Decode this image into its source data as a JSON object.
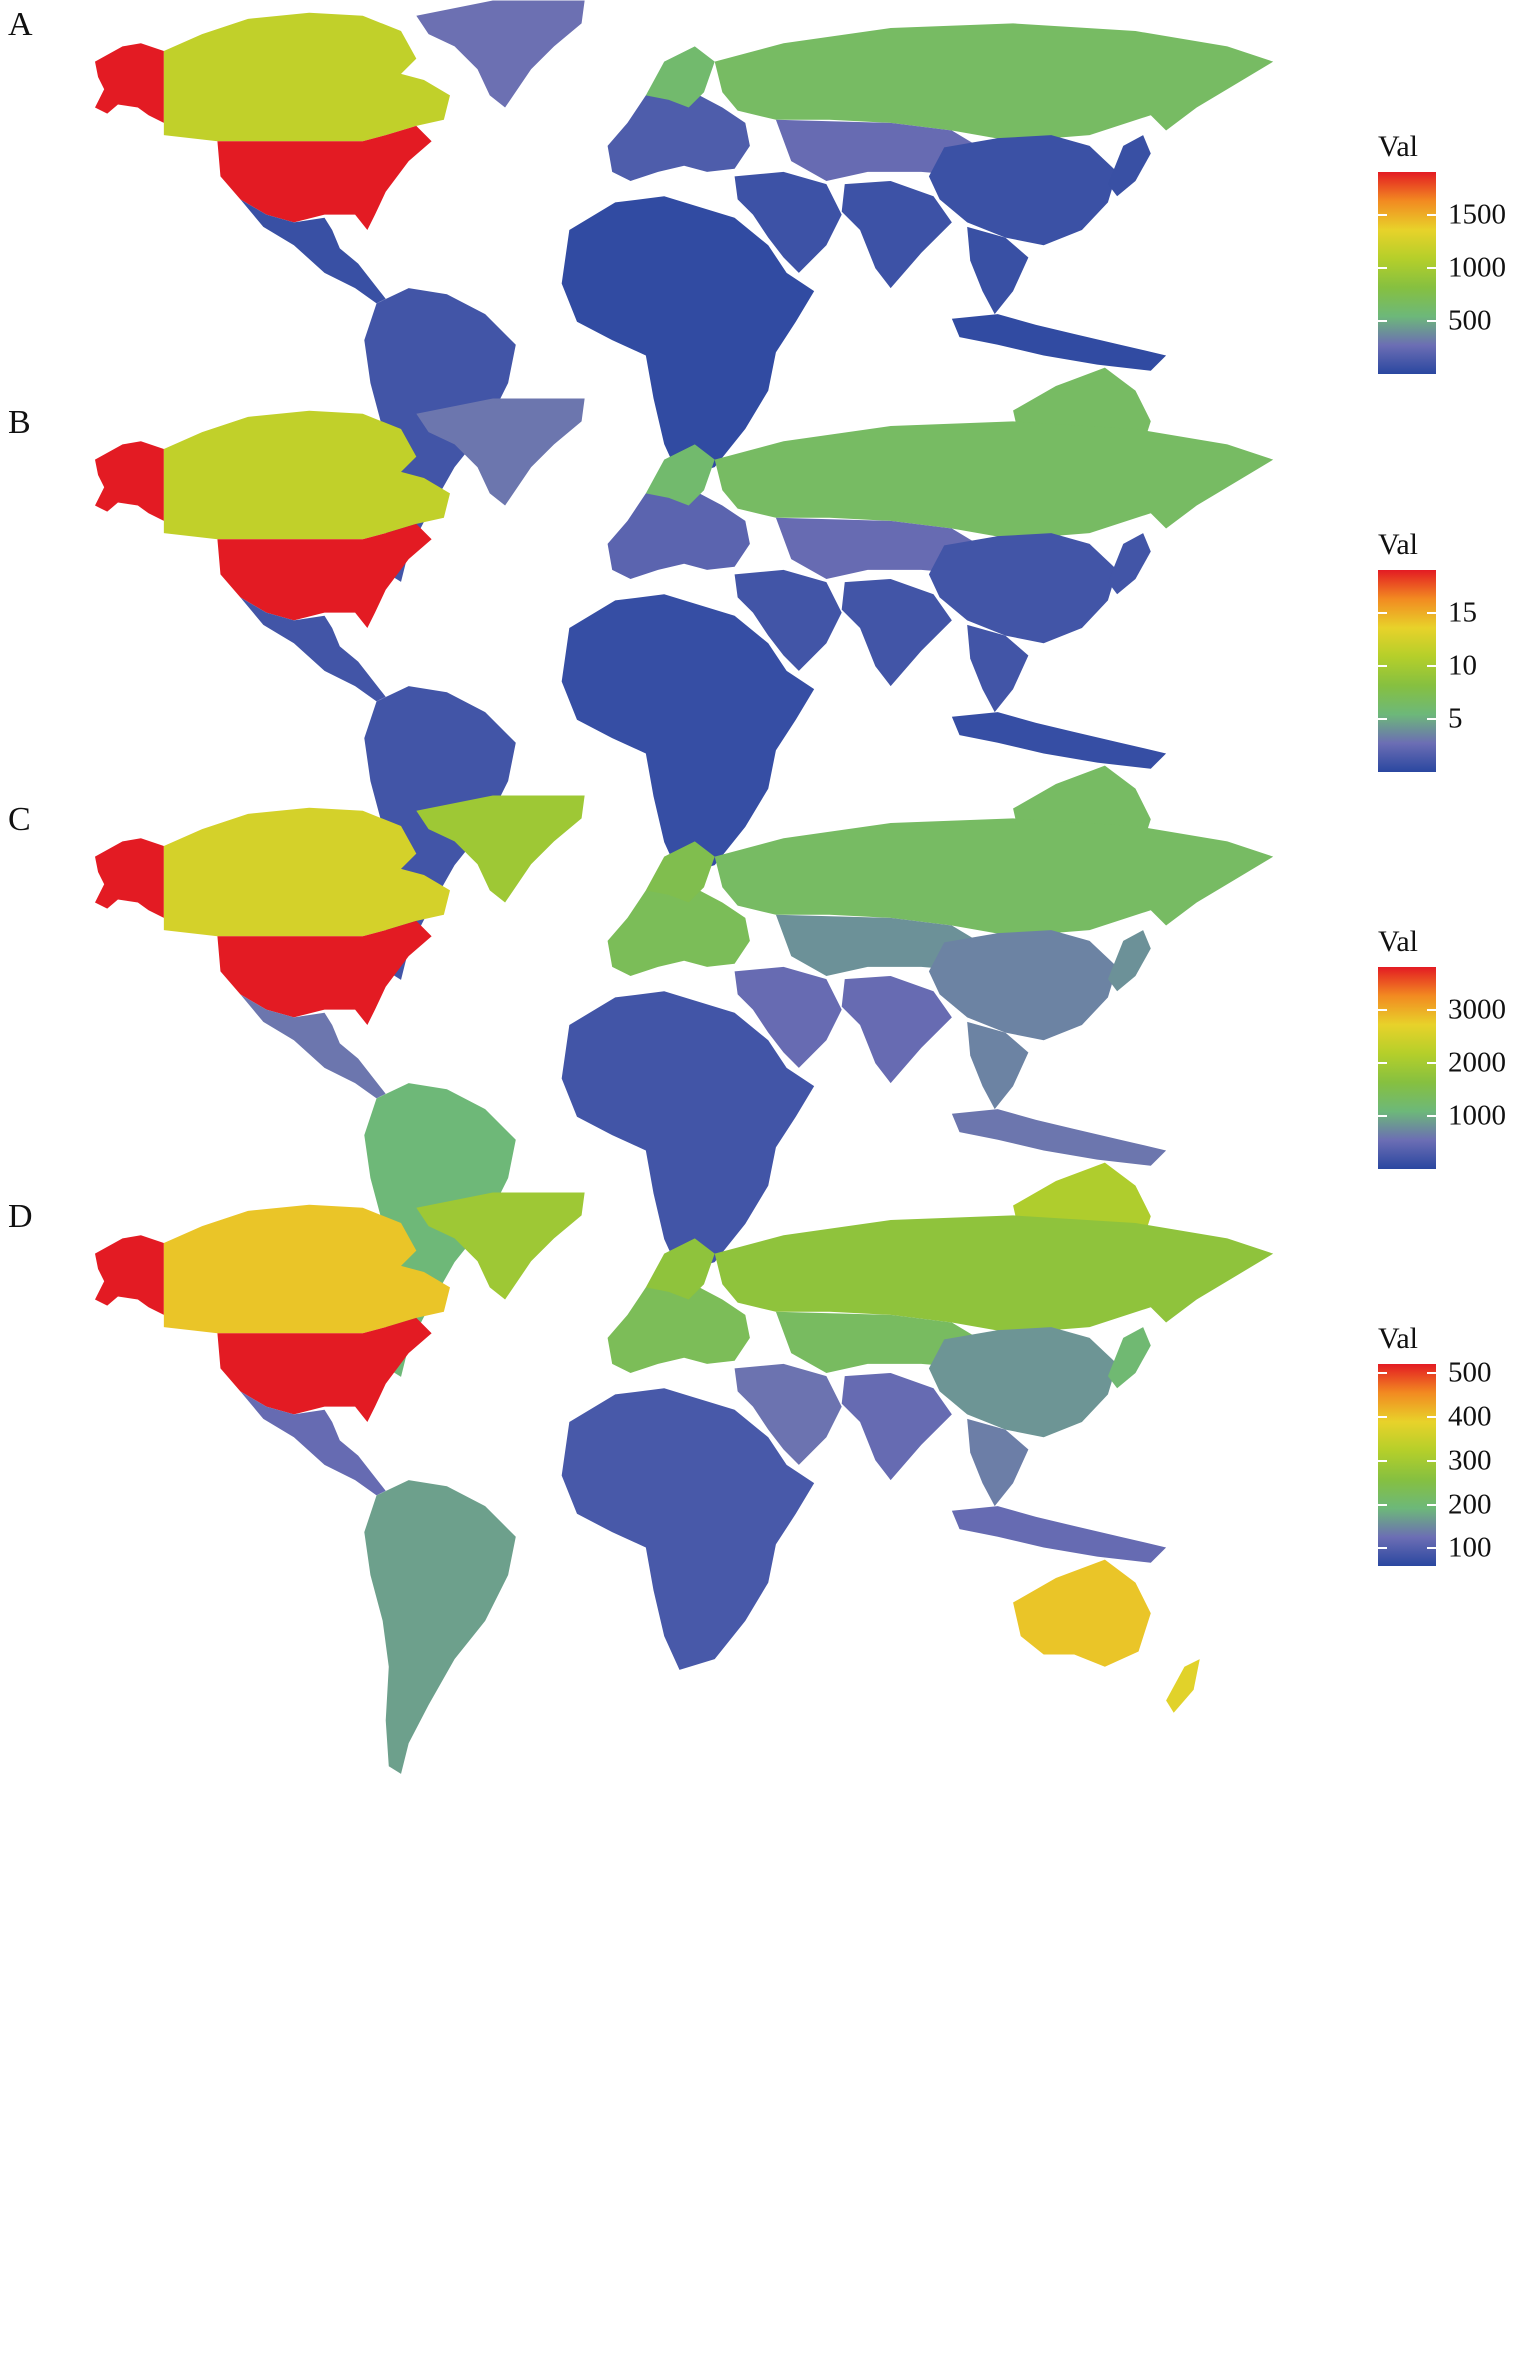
{
  "colors": {
    "scale": [
      "#2a47a0",
      "#6c6eb4",
      "#6db879",
      "#86c040",
      "#b5cf2a",
      "#e8d22a",
      "#f28a21",
      "#e31b23"
    ]
  },
  "panels": [
    {
      "id": "A",
      "label": "A",
      "legend": {
        "title": "Val",
        "min": 0,
        "max": 1900,
        "ticks": [
          500,
          1000,
          1500
        ]
      },
      "regions": {
        "alaska": 1900,
        "canada": 1150,
        "usa": 1900,
        "greenland": 280,
        "mexico_central": 60,
        "south_america": 100,
        "europe_west": 150,
        "scandinavia": 600,
        "russia": 650,
        "africa": 30,
        "middle_east": 80,
        "central_asia": 250,
        "china": 70,
        "india": 80,
        "southeast_asia": 60,
        "indonesia": 30,
        "japan": 60,
        "australia": 650,
        "new_zealand": 250
      }
    },
    {
      "id": "B",
      "label": "B",
      "legend": {
        "title": "Val",
        "min": 0,
        "max": 19,
        "ticks": [
          5,
          10,
          15
        ]
      },
      "regions": {
        "alaska": 19,
        "canada": 11.5,
        "usa": 19,
        "greenland": 3,
        "mexico_central": 1,
        "south_america": 1,
        "europe_west": 2,
        "scandinavia": 6,
        "russia": 6.5,
        "africa": 0.5,
        "middle_east": 1,
        "central_asia": 2.5,
        "china": 1,
        "india": 1,
        "southeast_asia": 1,
        "indonesia": 0.5,
        "japan": 1,
        "australia": 6.5,
        "new_zealand": 3
      }
    },
    {
      "id": "C",
      "label": "C",
      "legend": {
        "title": "Val",
        "min": 0,
        "max": 3800,
        "ticks": [
          1000,
          2000,
          3000
        ]
      },
      "regions": {
        "alaska": 3800,
        "canada": 2500,
        "usa": 3800,
        "greenland": 1900,
        "mexico_central": 600,
        "south_america": 1100,
        "europe_west": 1400,
        "scandinavia": 1500,
        "russia": 1300,
        "africa": 200,
        "middle_east": 500,
        "central_asia": 800,
        "china": 700,
        "india": 500,
        "southeast_asia": 700,
        "indonesia": 600,
        "japan": 800,
        "australia": 2100,
        "new_zealand": 2100
      }
    },
    {
      "id": "D",
      "label": "D",
      "legend": {
        "title": "Val",
        "min": 60,
        "max": 520,
        "ticks": [
          100,
          200,
          300,
          400,
          500
        ]
      },
      "regions": {
        "alaska": 520,
        "canada": 400,
        "usa": 520,
        "greenland": 290,
        "mexico_central": 120,
        "south_america": 170,
        "europe_west": 230,
        "scandinavia": 270,
        "russia": 270,
        "africa": 90,
        "middle_east": 130,
        "central_asia": 220,
        "china": 160,
        "india": 120,
        "southeast_asia": 140,
        "indonesia": 120,
        "japan": 200,
        "australia": 400,
        "new_zealand": 380
      }
    }
  ]
}
